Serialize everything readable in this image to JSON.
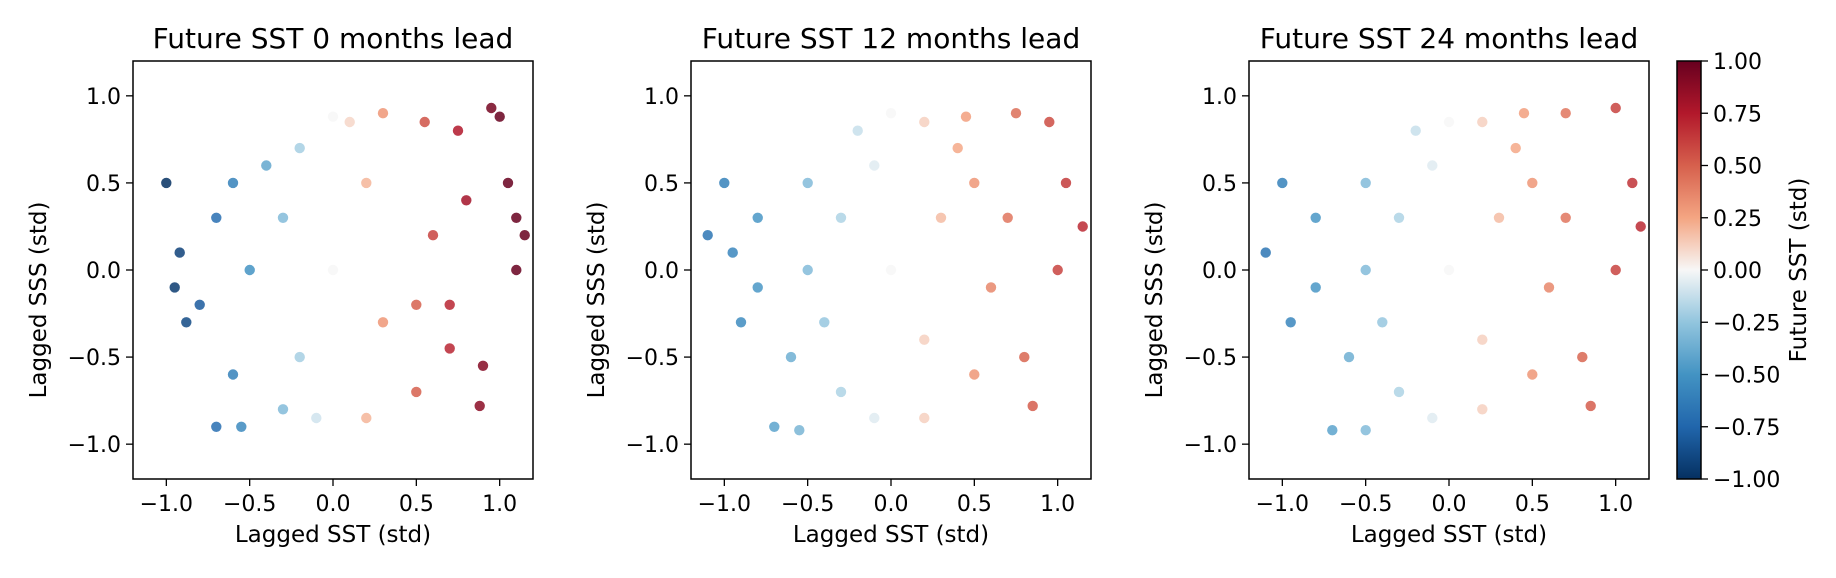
{
  "figure": {
    "panels": [
      {
        "title": "Future SST 0 months lead"
      },
      {
        "title": "Future SST 12 months lead"
      },
      {
        "title": "Future SST 24 months lead"
      }
    ],
    "colorbar": {
      "label": "Future SST (std)",
      "ticks": [
        "1.00",
        "0.75",
        "0.50",
        "0.25",
        "0.00",
        "−0.25",
        "−0.50",
        "−0.75",
        "−1.00"
      ]
    }
  },
  "chart_data": [
    {
      "type": "scatter",
      "title": "Future SST 0 months lead",
      "xlabel": "Lagged SST (std)",
      "ylabel": "Lagged SSS (std)",
      "xlim": [
        -1.2,
        1.2
      ],
      "ylim": [
        -1.2,
        1.2
      ],
      "xticks": [
        "−1.0",
        "−0.5",
        "0.0",
        "0.5",
        "1.0"
      ],
      "yticks": [
        "1.0",
        "0.5",
        "0.0",
        "−0.5",
        "−1.0"
      ],
      "grid": false,
      "color_variable": "Future SST (std)",
      "color_range": [
        -1.0,
        1.0
      ],
      "colormap": "RdBu_r",
      "points": [
        [
          -1.0,
          0.5
        ],
        [
          -0.92,
          0.1
        ],
        [
          -0.95,
          -0.1
        ],
        [
          -0.88,
          -0.3
        ],
        [
          -0.7,
          -0.9
        ],
        [
          -0.55,
          -0.9
        ],
        [
          -0.4,
          0.6
        ],
        [
          -0.2,
          0.7
        ],
        [
          0.0,
          0.88
        ],
        [
          0.1,
          0.85
        ],
        [
          0.3,
          0.9
        ],
        [
          0.55,
          0.85
        ],
        [
          0.75,
          0.8
        ],
        [
          0.95,
          0.93
        ],
        [
          1.0,
          0.88
        ],
        [
          1.05,
          0.5
        ],
        [
          1.1,
          0.3
        ],
        [
          1.15,
          0.2
        ],
        [
          1.1,
          0.0
        ],
        [
          0.9,
          -0.55
        ],
        [
          0.88,
          -0.78
        ],
        [
          0.7,
          -0.45
        ],
        [
          0.5,
          -0.7
        ],
        [
          0.2,
          -0.85
        ],
        [
          -0.1,
          -0.85
        ],
        [
          -0.3,
          -0.8
        ],
        [
          -0.6,
          -0.6
        ],
        [
          -0.8,
          -0.2
        ],
        [
          -0.7,
          0.3
        ],
        [
          -0.6,
          0.5
        ],
        [
          -0.3,
          0.3
        ],
        [
          0.0,
          0.0
        ],
        [
          0.3,
          -0.3
        ],
        [
          0.6,
          0.2
        ],
        [
          0.8,
          0.4
        ],
        [
          -0.5,
          0.0
        ],
        [
          0.5,
          -0.2
        ],
        [
          0.2,
          0.5
        ],
        [
          -0.2,
          -0.5
        ],
        [
          0.7,
          -0.2
        ]
      ]
    },
    {
      "type": "scatter",
      "title": "Future SST 12 months lead",
      "xlabel": "Lagged SST (std)",
      "ylabel": "Lagged SSS (std)",
      "xlim": [
        -1.2,
        1.2
      ],
      "ylim": [
        -1.2,
        1.2
      ],
      "xticks": [
        "−1.0",
        "−0.5",
        "0.0",
        "0.5",
        "1.0"
      ],
      "yticks": [
        "1.0",
        "0.5",
        "0.0",
        "−0.5",
        "−1.0"
      ],
      "grid": false,
      "color_variable": "Future SST (std)",
      "color_range": [
        -1.0,
        1.0
      ],
      "colormap": "RdBu_r",
      "points": [
        [
          -1.0,
          0.5
        ],
        [
          -0.95,
          0.1
        ],
        [
          -1.1,
          0.2
        ],
        [
          -0.9,
          -0.3
        ],
        [
          -0.8,
          0.3
        ],
        [
          -0.7,
          -0.9
        ],
        [
          -0.55,
          -0.92
        ],
        [
          -0.5,
          0.5
        ],
        [
          -0.2,
          0.8
        ],
        [
          0.0,
          0.9
        ],
        [
          0.2,
          0.85
        ],
        [
          0.45,
          0.88
        ],
        [
          0.75,
          0.9
        ],
        [
          0.95,
          0.85
        ],
        [
          1.05,
          0.5
        ],
        [
          1.15,
          0.25
        ],
        [
          1.0,
          0.0
        ],
        [
          0.8,
          -0.5
        ],
        [
          0.85,
          -0.78
        ],
        [
          0.5,
          -0.6
        ],
        [
          0.2,
          -0.85
        ],
        [
          -0.1,
          -0.85
        ],
        [
          -0.3,
          -0.7
        ],
        [
          -0.6,
          -0.5
        ],
        [
          -0.8,
          -0.1
        ],
        [
          -0.5,
          0.0
        ],
        [
          0.0,
          0.0
        ],
        [
          0.3,
          0.3
        ],
        [
          0.5,
          0.5
        ],
        [
          0.7,
          0.3
        ],
        [
          -0.3,
          0.3
        ],
        [
          0.2,
          -0.4
        ],
        [
          -0.4,
          -0.3
        ],
        [
          0.6,
          -0.1
        ],
        [
          0.4,
          0.7
        ],
        [
          -0.1,
          0.6
        ]
      ]
    },
    {
      "type": "scatter",
      "title": "Future SST 24 months lead",
      "xlabel": "Lagged SST (std)",
      "ylabel": "Lagged SSS (std)",
      "xlim": [
        -1.2,
        1.2
      ],
      "ylim": [
        -1.2,
        1.2
      ],
      "xticks": [
        "−1.0",
        "−0.5",
        "0.0",
        "0.5",
        "1.0"
      ],
      "yticks": [
        "1.0",
        "0.5",
        "0.0",
        "−0.5",
        "−1.0"
      ],
      "grid": false,
      "color_variable": "Future SST (std)",
      "color_range": [
        -1.0,
        1.0
      ],
      "colormap": "RdBu_r",
      "points": [
        [
          -1.0,
          0.5
        ],
        [
          -1.1,
          0.1
        ],
        [
          -0.95,
          -0.3
        ],
        [
          -0.8,
          0.3
        ],
        [
          -0.7,
          -0.92
        ],
        [
          -0.5,
          -0.92
        ],
        [
          -0.5,
          0.5
        ],
        [
          -0.2,
          0.8
        ],
        [
          0.0,
          0.85
        ],
        [
          0.2,
          0.85
        ],
        [
          0.45,
          0.9
        ],
        [
          0.7,
          0.9
        ],
        [
          1.0,
          0.93
        ],
        [
          1.1,
          0.5
        ],
        [
          1.15,
          0.25
        ],
        [
          1.0,
          0.0
        ],
        [
          0.8,
          -0.5
        ],
        [
          0.85,
          -0.78
        ],
        [
          0.5,
          -0.6
        ],
        [
          0.2,
          -0.8
        ],
        [
          -0.1,
          -0.85
        ],
        [
          -0.3,
          -0.7
        ],
        [
          -0.6,
          -0.5
        ],
        [
          -0.8,
          -0.1
        ],
        [
          -0.5,
          0.0
        ],
        [
          0.0,
          0.0
        ],
        [
          0.3,
          0.3
        ],
        [
          0.5,
          0.5
        ],
        [
          0.7,
          0.3
        ],
        [
          -0.3,
          0.3
        ],
        [
          0.2,
          -0.4
        ],
        [
          -0.4,
          -0.3
        ],
        [
          0.6,
          -0.1
        ],
        [
          0.4,
          0.7
        ],
        [
          -0.1,
          0.6
        ]
      ]
    }
  ]
}
